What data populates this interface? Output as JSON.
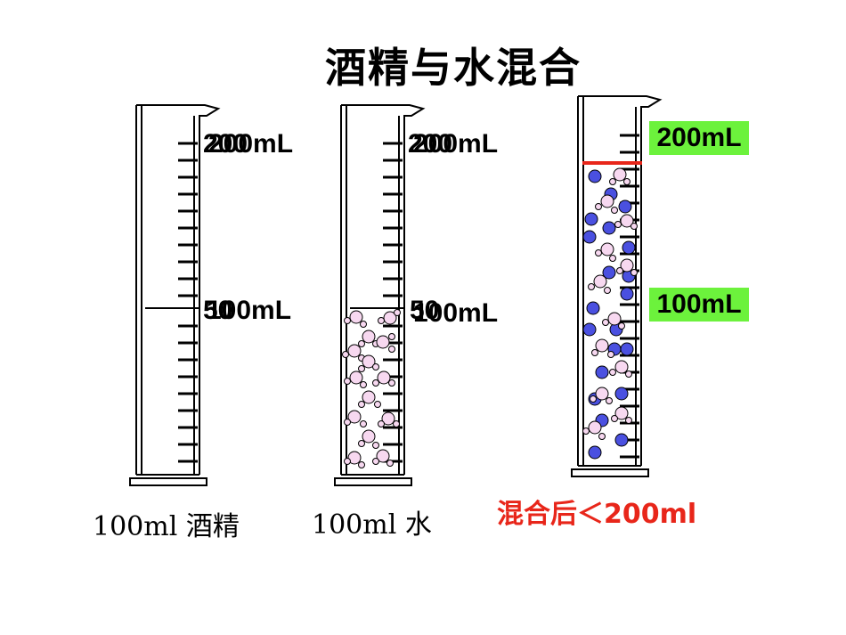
{
  "title": "酒精与水混合",
  "cylinder_left": {
    "mark_200": "200mL",
    "mark_100": "100mL",
    "ghost_top": "200",
    "ghost_mid": "50",
    "caption": "100ml 酒精"
  },
  "cylinder_mid": {
    "mark_200": "200mL",
    "mark_100": "100mL",
    "ghost_top": "200",
    "ghost_mid": "50",
    "caption": "100ml 水"
  },
  "cylinder_right": {
    "mark_200": "200mL",
    "mark_100": "100mL",
    "caption": "混合后＜200ml"
  },
  "colors": {
    "highlight": "#6cf23c",
    "red_line": "#e8261a",
    "water_molecule": "#f7d8f0",
    "alcohol_molecule": "#4a50e0",
    "caption_red": "#e8261a"
  }
}
